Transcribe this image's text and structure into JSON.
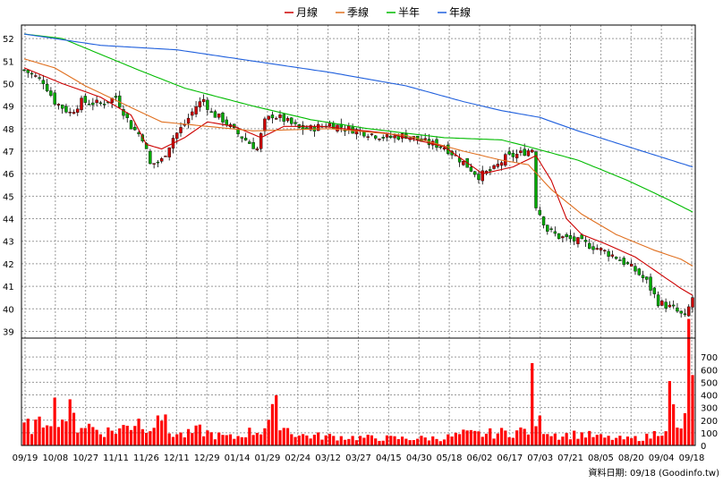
{
  "legend": {
    "items": [
      {
        "label": "月線",
        "color": "#cc0000"
      },
      {
        "label": "季線",
        "color": "#e07020"
      },
      {
        "label": "半年",
        "color": "#00bb00"
      },
      {
        "label": "年線",
        "color": "#2060dd"
      }
    ]
  },
  "footer": {
    "source": "資料日期: 09/18  (Goodinfo.tw)"
  },
  "chart_data": [
    {
      "type": "candlestick",
      "ylim": [
        38.7,
        52.6
      ],
      "y_ticks": [
        "39",
        "40",
        "41",
        "42",
        "43",
        "44",
        "45",
        "46",
        "47",
        "48",
        "49",
        "50",
        "51",
        "52"
      ],
      "x_ticks": [
        "09/19",
        "10/08",
        "10/27",
        "11/11",
        "11/26",
        "12/11",
        "12/29",
        "01/14",
        "01/29",
        "02/24",
        "03/12",
        "03/27",
        "04/15",
        "04/30",
        "05/18",
        "06/02",
        "06/17",
        "07/03",
        "07/21",
        "08/05",
        "08/20",
        "09/04",
        "09/18"
      ],
      "up_color": "#cc0000",
      "down_color": "#00aa00",
      "price_anchors": [
        [
          0,
          50.6
        ],
        [
          5,
          50.1
        ],
        [
          8,
          49.2
        ],
        [
          12,
          48.7
        ],
        [
          15,
          49.2
        ],
        [
          20,
          49.1
        ],
        [
          24,
          49.4
        ],
        [
          28,
          48.1
        ],
        [
          31,
          47.6
        ],
        [
          33,
          46.4
        ],
        [
          36,
          46.6
        ],
        [
          39,
          47.6
        ],
        [
          42,
          48.2
        ],
        [
          45,
          49.0
        ],
        [
          47,
          49.3
        ],
        [
          49,
          48.7
        ],
        [
          52,
          48.4
        ],
        [
          55,
          47.9
        ],
        [
          58,
          47.5
        ],
        [
          61,
          47.1
        ],
        [
          63,
          48.3
        ],
        [
          65,
          48.6
        ],
        [
          68,
          48.4
        ],
        [
          72,
          48.0
        ],
        [
          75,
          48.0
        ],
        [
          80,
          48.2
        ],
        [
          85,
          48.0
        ],
        [
          90,
          47.8
        ],
        [
          95,
          47.6
        ],
        [
          100,
          47.7
        ],
        [
          105,
          47.4
        ],
        [
          110,
          47.2
        ],
        [
          115,
          46.5
        ],
        [
          119,
          45.9
        ],
        [
          123,
          46.2
        ],
        [
          126,
          46.7
        ],
        [
          130,
          46.9
        ],
        [
          133,
          47.1
        ],
        [
          134,
          44.6
        ],
        [
          137,
          43.5
        ],
        [
          140,
          43.2
        ],
        [
          145,
          43.0
        ],
        [
          150,
          42.7
        ],
        [
          155,
          42.3
        ],
        [
          160,
          41.7
        ],
        [
          163,
          41.2
        ],
        [
          166,
          40.3
        ],
        [
          170,
          40.0
        ],
        [
          173,
          39.6
        ],
        [
          175,
          40.5
        ]
      ],
      "ma_month": [
        [
          0,
          50.7
        ],
        [
          10,
          50.0
        ],
        [
          20,
          49.4
        ],
        [
          28,
          48.6
        ],
        [
          32,
          47.3
        ],
        [
          36,
          47.1
        ],
        [
          42,
          47.6
        ],
        [
          48,
          48.3
        ],
        [
          55,
          48.1
        ],
        [
          62,
          47.6
        ],
        [
          68,
          48.1
        ],
        [
          78,
          48.1
        ],
        [
          95,
          47.8
        ],
        [
          110,
          47.2
        ],
        [
          120,
          46.0
        ],
        [
          128,
          46.3
        ],
        [
          134,
          46.8
        ],
        [
          138,
          45.7
        ],
        [
          142,
          44.0
        ],
        [
          146,
          43.3
        ],
        [
          152,
          42.9
        ],
        [
          160,
          42.3
        ],
        [
          166,
          41.6
        ],
        [
          172,
          40.9
        ],
        [
          175,
          40.6
        ]
      ],
      "ma_season": [
        [
          0,
          51.1
        ],
        [
          8,
          50.7
        ],
        [
          16,
          49.9
        ],
        [
          26,
          49.1
        ],
        [
          36,
          48.3
        ],
        [
          48,
          48.1
        ],
        [
          60,
          47.9
        ],
        [
          80,
          48.0
        ],
        [
          100,
          47.7
        ],
        [
          115,
          47.0
        ],
        [
          125,
          46.6
        ],
        [
          132,
          46.4
        ],
        [
          138,
          45.3
        ],
        [
          146,
          44.2
        ],
        [
          155,
          43.3
        ],
        [
          165,
          42.6
        ],
        [
          172,
          42.2
        ],
        [
          175,
          41.9
        ]
      ],
      "ma_half": [
        [
          0,
          52.2
        ],
        [
          10,
          52.0
        ],
        [
          20,
          51.3
        ],
        [
          30,
          50.6
        ],
        [
          42,
          49.8
        ],
        [
          60,
          49.0
        ],
        [
          75,
          48.4
        ],
        [
          90,
          48.0
        ],
        [
          110,
          47.6
        ],
        [
          125,
          47.5
        ],
        [
          132,
          47.2
        ],
        [
          145,
          46.6
        ],
        [
          158,
          45.7
        ],
        [
          168,
          44.9
        ],
        [
          175,
          44.3
        ]
      ],
      "ma_year": [
        [
          0,
          52.2
        ],
        [
          20,
          51.7
        ],
        [
          40,
          51.5
        ],
        [
          60,
          51.0
        ],
        [
          80,
          50.5
        ],
        [
          100,
          49.9
        ],
        [
          115,
          49.2
        ],
        [
          125,
          48.8
        ],
        [
          135,
          48.5
        ],
        [
          145,
          47.9
        ],
        [
          160,
          47.1
        ],
        [
          175,
          46.3
        ]
      ]
    },
    {
      "type": "bar",
      "ylabel": "",
      "ylim": [
        0,
        850
      ],
      "y_ticks": [
        "0",
        "100",
        "200",
        "300",
        "400",
        "500",
        "600",
        "700"
      ],
      "color": "#ff0000",
      "volume_anchors": [
        [
          0,
          150
        ],
        [
          4,
          160
        ],
        [
          6,
          240
        ],
        [
          8,
          300
        ],
        [
          10,
          210
        ],
        [
          12,
          260
        ],
        [
          14,
          160
        ],
        [
          16,
          170
        ],
        [
          20,
          110
        ],
        [
          24,
          120
        ],
        [
          28,
          160
        ],
        [
          30,
          240
        ],
        [
          32,
          90
        ],
        [
          35,
          320
        ],
        [
          38,
          100
        ],
        [
          42,
          80
        ],
        [
          46,
          120
        ],
        [
          50,
          80
        ],
        [
          55,
          60
        ],
        [
          58,
          100
        ],
        [
          62,
          120
        ],
        [
          64,
          200
        ],
        [
          66,
          280
        ],
        [
          68,
          150
        ],
        [
          72,
          80
        ],
        [
          80,
          70
        ],
        [
          90,
          60
        ],
        [
          100,
          55
        ],
        [
          110,
          60
        ],
        [
          115,
          90
        ],
        [
          120,
          90
        ],
        [
          125,
          100
        ],
        [
          132,
          120
        ],
        [
          133,
          460
        ],
        [
          134,
          200
        ],
        [
          137,
          120
        ],
        [
          140,
          80
        ],
        [
          146,
          90
        ],
        [
          152,
          60
        ],
        [
          158,
          50
        ],
        [
          164,
          70
        ],
        [
          168,
          160
        ],
        [
          169,
          410
        ],
        [
          171,
          120
        ],
        [
          173,
          190
        ],
        [
          174,
          820
        ],
        [
          175,
          710
        ]
      ]
    }
  ]
}
